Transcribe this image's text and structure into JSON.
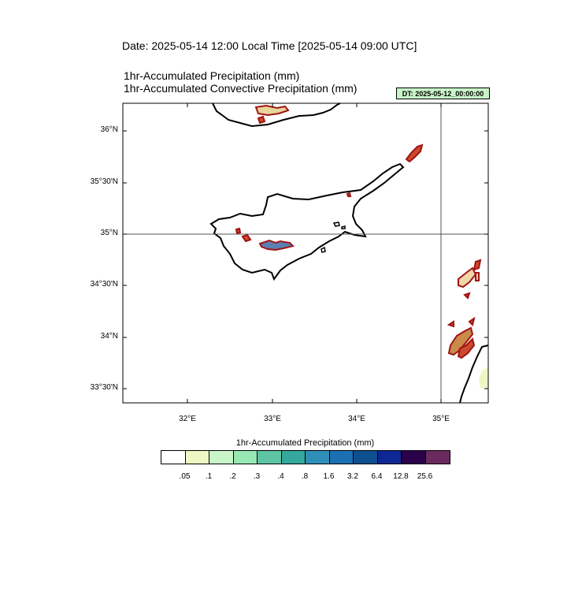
{
  "header": {
    "date_line": "Date: 2025-05-14  12:00 Local Time [2025-05-14  09:00 UTC]",
    "line1": "1hr-Accumulated Precipitation   (mm)",
    "line2": "1hr-Accumulated Convective Precipitation   (mm)",
    "dt_badge": "DT: 2025-05-12_00:00:00"
  },
  "map": {
    "lat_ticks": [
      "36°N",
      "35°30'N",
      "35°N",
      "34°30'N",
      "34°N",
      "33°30'N"
    ],
    "lon_ticks": [
      "32°E",
      "33°E",
      "34°E",
      "35°E"
    ],
    "reference_lines": {
      "lat": "35°N",
      "lon": "35°E"
    }
  },
  "colorbar": {
    "title": "1hr-Accumulated Precipitation  (mm)",
    "colors": [
      "#ffffff",
      "#eef7c4",
      "#c9f5c9",
      "#98e8b4",
      "#5fc4a4",
      "#34a89c",
      "#2f8fb8",
      "#1c6fb0",
      "#0e4f8f",
      "#0d2794",
      "#2a004a",
      "#6b2a5e"
    ],
    "ticks": [
      ".05",
      ".1",
      ".2",
      ".3",
      ".4",
      ".8",
      "1.6",
      "3.2",
      "6.4",
      "12.8",
      "25.6"
    ]
  }
}
